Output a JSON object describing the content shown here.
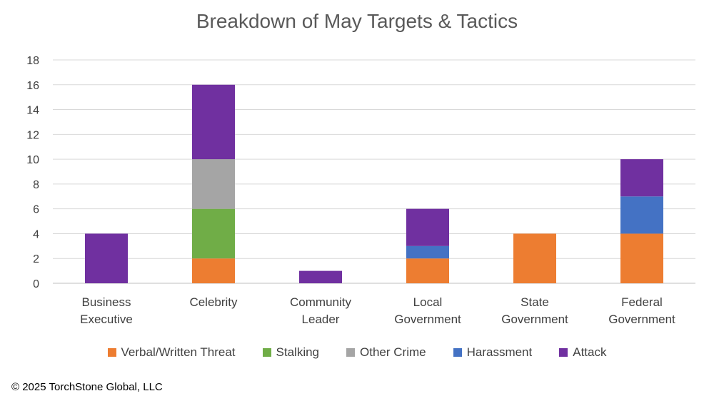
{
  "chart_data": {
    "type": "bar",
    "stacked": true,
    "title": "Breakdown of May Targets & Tactics",
    "categories": [
      [
        "Business",
        "Executive"
      ],
      [
        "Celebrity"
      ],
      [
        "Community",
        "Leader"
      ],
      [
        "Local",
        "Government"
      ],
      [
        "State",
        "Government"
      ],
      [
        "Federal",
        "Government"
      ]
    ],
    "series": [
      {
        "name": "Verbal/Written Threat",
        "color": "#ED7D31",
        "values": [
          0,
          2,
          0,
          2,
          4,
          4
        ]
      },
      {
        "name": "Stalking",
        "color": "#70AD47",
        "values": [
          0,
          4,
          0,
          0,
          0,
          0
        ]
      },
      {
        "name": "Other Crime",
        "color": "#A5A5A5",
        "values": [
          0,
          4,
          0,
          0,
          0,
          0
        ]
      },
      {
        "name": "Harassment",
        "color": "#4472C4",
        "values": [
          0,
          0,
          0,
          1,
          0,
          3
        ]
      },
      {
        "name": "Attack",
        "color": "#7030A0",
        "values": [
          4,
          6,
          1,
          3,
          0,
          3
        ]
      }
    ],
    "ylim": [
      0,
      18
    ],
    "yticks": [
      0,
      2,
      4,
      6,
      8,
      10,
      12,
      14,
      16,
      18
    ],
    "grid": true,
    "legend": "bottom"
  },
  "footer": {
    "copyright": "© 2025 TorchStone Global, LLC"
  }
}
